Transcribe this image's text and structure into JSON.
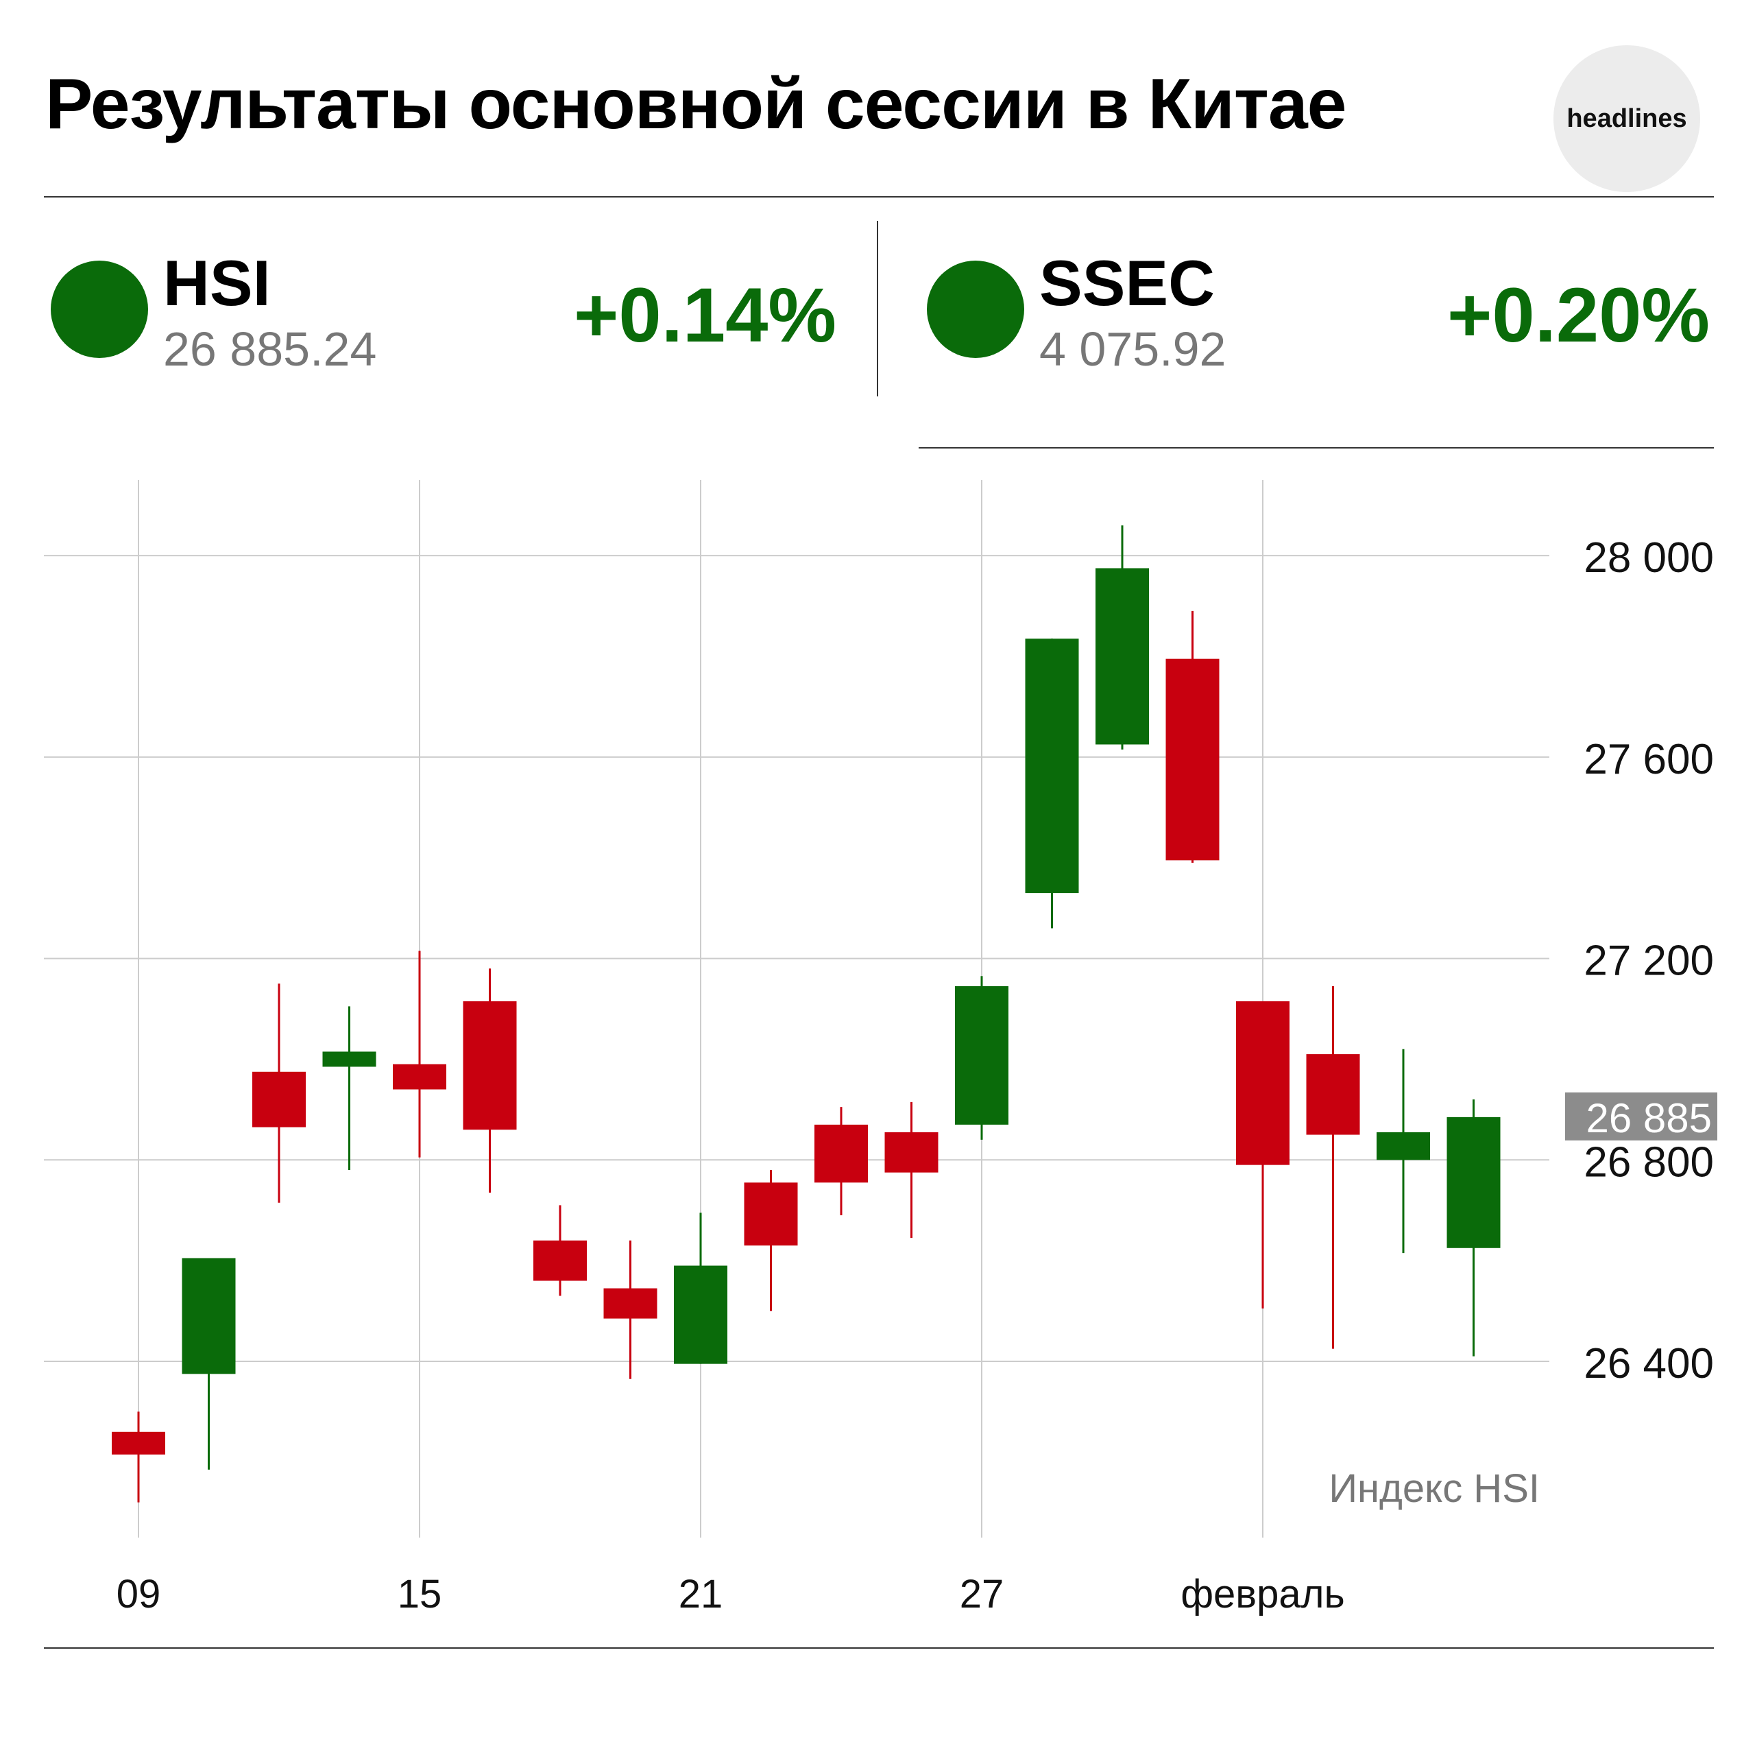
{
  "header": {
    "title": "Результаты основной сессии в Китае",
    "logo_text": "headlines"
  },
  "indices": [
    {
      "name": "HSI",
      "value": "26 885.24",
      "change": "+0.14%",
      "color": "#0a6b0a"
    },
    {
      "name": "SSEC",
      "value": "4 075.92",
      "change": "+0.20%",
      "color": "#0a6b0a"
    }
  ],
  "colors": {
    "up": "#0a6b0a",
    "down": "#c8000f",
    "grid": "#cccccc",
    "axis_text": "#111111",
    "current_label_bg": "#8c8c8c"
  },
  "chart_data": {
    "type": "candlestick",
    "title": "",
    "annotation": "Индекс HSI",
    "x_labels": [
      {
        "index": 0,
        "label": "09"
      },
      {
        "index": 4,
        "label": "15"
      },
      {
        "index": 8,
        "label": "21"
      },
      {
        "index": 12,
        "label": "27"
      },
      {
        "index": 16,
        "label": "февраль"
      }
    ],
    "ylim": [
      26050,
      28150
    ],
    "yticks": [
      26400,
      26800,
      27200,
      27600,
      28000
    ],
    "ytick_labels": [
      "26 400",
      "26 800",
      "27 200",
      "27 600",
      "28 000"
    ],
    "current_value": 26885,
    "current_label": "26 885",
    "grid": true,
    "candles": [
      {
        "open": 26260,
        "high": 26300,
        "low": 26120,
        "close": 26215
      },
      {
        "open": 26375,
        "high": 26605,
        "low": 26185,
        "close": 26605
      },
      {
        "open": 26975,
        "high": 27150,
        "low": 26715,
        "close": 26865
      },
      {
        "open": 26985,
        "high": 27105,
        "low": 26780,
        "close": 27015
      },
      {
        "open": 26990,
        "high": 27215,
        "low": 26805,
        "close": 26940
      },
      {
        "open": 27115,
        "high": 27180,
        "low": 26735,
        "close": 26860
      },
      {
        "open": 26640,
        "high": 26710,
        "low": 26530,
        "close": 26560
      },
      {
        "open": 26545,
        "high": 26640,
        "low": 26365,
        "close": 26485
      },
      {
        "open": 26395,
        "high": 26695,
        "low": 26395,
        "close": 26590
      },
      {
        "open": 26755,
        "high": 26780,
        "low": 26500,
        "close": 26630
      },
      {
        "open": 26870,
        "high": 26905,
        "low": 26690,
        "close": 26755
      },
      {
        "open": 26855,
        "high": 26915,
        "low": 26645,
        "close": 26775
      },
      {
        "open": 26870,
        "high": 27165,
        "low": 26840,
        "close": 27145
      },
      {
        "open": 27330,
        "high": 27835,
        "low": 27260,
        "close": 27835
      },
      {
        "open": 27625,
        "high": 28060,
        "low": 27615,
        "close": 27975
      },
      {
        "open": 27795,
        "high": 27890,
        "low": 27390,
        "close": 27395
      },
      {
        "open": 27115,
        "high": 27115,
        "low": 26505,
        "close": 26790
      },
      {
        "open": 27010,
        "high": 27145,
        "low": 26425,
        "close": 26850
      },
      {
        "open": 26800,
        "high": 27020,
        "low": 26615,
        "close": 26855
      },
      {
        "open": 26625,
        "high": 26920,
        "low": 26410,
        "close": 26885
      }
    ]
  }
}
